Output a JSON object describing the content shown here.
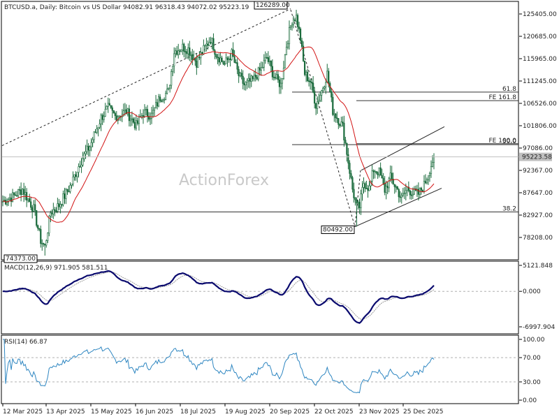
{
  "chart_data": {
    "type": "candlestick",
    "symbol_line": "BTCUSD.a, Daily:  Bitcoin vs US Dollar  94082.91 96318.43 94072.02 95223.19",
    "watermark": "ActionForex",
    "price_axis": [
      "125405.00",
      "120685.00",
      "115965.00",
      "111245.00",
      "106526.00",
      "101806.00",
      "97086.00",
      "92367.00",
      "87647.00",
      "82927.00",
      "78208.00"
    ],
    "current_price_label": "95223.58",
    "current_price": 95223.58,
    "price_range": [
      74373,
      126289
    ],
    "x_labels": [
      "12 Mar 2025",
      "13 Apr 2025",
      "15 May 2025",
      "16 Jun 2025",
      "18 Jul 2025",
      "19 Aug 2025",
      "20 Sep 2025",
      "22 Oct 2025",
      "23 Nov 2025",
      "25 Dec 2025"
    ],
    "markers": [
      {
        "text": "126289.00",
        "price": 126289
      },
      {
        "text": "80492.00",
        "price": 80492
      },
      {
        "text": "74373.00",
        "price": 74373
      }
    ],
    "fib_levels": [
      {
        "text": "61.8",
        "price": 108900
      },
      {
        "text": "FE 161.8",
        "price": 107100
      },
      {
        "text": "FE 100.0",
        "price": 98000
      },
      {
        "text": "50.0",
        "price": 97800
      },
      {
        "text": "38.2",
        "price": 83600
      }
    ],
    "macd": {
      "title": "MACD(12,26,9) 971.905 581.511",
      "axis": [
        "5121.848",
        "0.000",
        "-6997.904"
      ]
    },
    "rsi": {
      "title": "RSI(14) 66.87",
      "axis": [
        "100.00",
        "70.00",
        "30.00",
        "0.00"
      ],
      "last": 66.87
    },
    "colors": {
      "candle": "#1a6b3c",
      "ma": "#d21414",
      "macd": "#0a0a6e",
      "signal": "#9a9a9a",
      "rsi": "#2e86c1",
      "fib": "#333333"
    }
  }
}
